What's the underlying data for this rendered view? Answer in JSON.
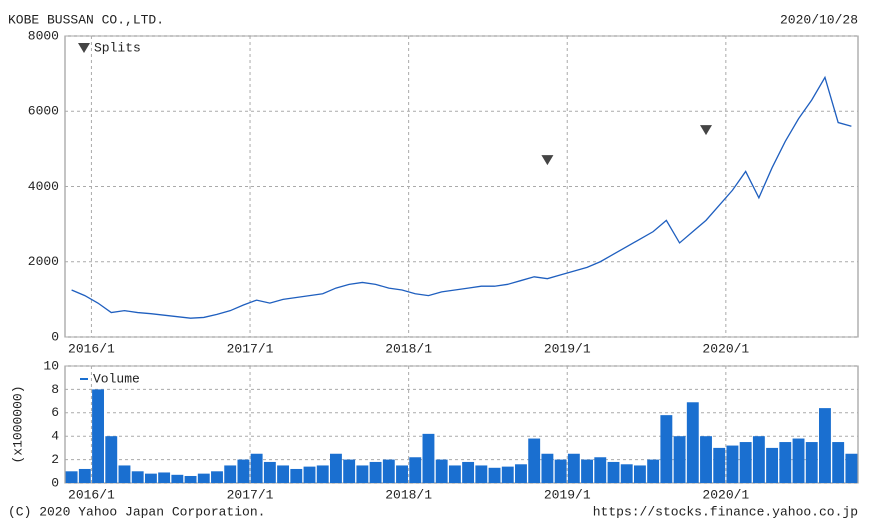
{
  "chart_data": [
    {
      "type": "line",
      "title": "KOBE BUSSAN CO.,LTD.",
      "subtitle": "2020/10/28",
      "x": [
        "2015/11",
        "2015/12",
        "2016/1",
        "2016/2",
        "2016/3",
        "2016/4",
        "2016/5",
        "2016/6",
        "2016/7",
        "2016/8",
        "2016/9",
        "2016/10",
        "2016/11",
        "2016/12",
        "2017/1",
        "2017/2",
        "2017/3",
        "2017/4",
        "2017/5",
        "2017/6",
        "2017/7",
        "2017/8",
        "2017/9",
        "2017/10",
        "2017/11",
        "2017/12",
        "2018/1",
        "2018/2",
        "2018/3",
        "2018/4",
        "2018/5",
        "2018/6",
        "2018/7",
        "2018/8",
        "2018/9",
        "2018/10",
        "2018/11",
        "2018/12",
        "2019/1",
        "2019/2",
        "2019/3",
        "2019/4",
        "2019/5",
        "2019/6",
        "2019/7",
        "2019/8",
        "2019/9",
        "2019/10",
        "2019/11",
        "2019/12",
        "2020/1",
        "2020/2",
        "2020/3",
        "2020/4",
        "2020/5",
        "2020/6",
        "2020/7",
        "2020/8",
        "2020/9",
        "2020/10"
      ],
      "series": [
        {
          "color": "#1f5fbf",
          "values": [
            1250,
            1100,
            900,
            650,
            700,
            650,
            620,
            580,
            540,
            500,
            520,
            600,
            700,
            850,
            980,
            900,
            1000,
            1050,
            1100,
            1150,
            1300,
            1400,
            1450,
            1400,
            1300,
            1250,
            1150,
            1100,
            1200,
            1250,
            1300,
            1350,
            1350,
            1400,
            1500,
            1600,
            1550,
            1650,
            1750,
            1850,
            2000,
            2200,
            2400,
            2600,
            2800,
            3100,
            2500,
            2800,
            3100,
            3500,
            3900,
            4400,
            3700,
            4500,
            5200,
            5800,
            6300,
            6900,
            5700,
            5600
          ]
        }
      ],
      "markers": {
        "name": "Splits",
        "color": "#444444",
        "x": [
          "2018/11",
          "2019/11"
        ],
        "values": [
          4700,
          5500
        ]
      },
      "ylim": [
        0,
        8000
      ],
      "yticks": [
        0,
        2000,
        4000,
        6000,
        8000
      ],
      "xticks": [
        "2016/1",
        "2017/1",
        "2018/1",
        "2019/1",
        "2020/1"
      ],
      "grid": true
    },
    {
      "type": "bar",
      "y_label": "(x1000000)",
      "x": [
        "2015/11",
        "2015/12",
        "2016/1",
        "2016/2",
        "2016/3",
        "2016/4",
        "2016/5",
        "2016/6",
        "2016/7",
        "2016/8",
        "2016/9",
        "2016/10",
        "2016/11",
        "2016/12",
        "2017/1",
        "2017/2",
        "2017/3",
        "2017/4",
        "2017/5",
        "2017/6",
        "2017/7",
        "2017/8",
        "2017/9",
        "2017/10",
        "2017/11",
        "2017/12",
        "2018/1",
        "2018/2",
        "2018/3",
        "2018/4",
        "2018/5",
        "2018/6",
        "2018/7",
        "2018/8",
        "2018/9",
        "2018/10",
        "2018/11",
        "2018/12",
        "2019/1",
        "2019/2",
        "2019/3",
        "2019/4",
        "2019/5",
        "2019/6",
        "2019/7",
        "2019/8",
        "2019/9",
        "2019/10",
        "2019/11",
        "2019/12",
        "2020/1",
        "2020/2",
        "2020/3",
        "2020/4",
        "2020/5",
        "2020/6",
        "2020/7",
        "2020/8",
        "2020/9",
        "2020/10"
      ],
      "series": [
        {
          "name": "Volume",
          "color": "#1a6fd0",
          "values": [
            1.0,
            1.2,
            8.0,
            4.0,
            1.5,
            1.0,
            0.8,
            0.9,
            0.7,
            0.6,
            0.8,
            1.0,
            1.5,
            2.0,
            2.5,
            1.8,
            1.5,
            1.2,
            1.4,
            1.5,
            2.5,
            2.0,
            1.5,
            1.8,
            2.0,
            1.5,
            2.2,
            4.2,
            2.0,
            1.5,
            1.8,
            1.5,
            1.3,
            1.4,
            1.6,
            3.8,
            2.5,
            2.0,
            2.5,
            2.0,
            2.2,
            1.8,
            1.6,
            1.5,
            2.0,
            5.8,
            4.0,
            6.9,
            4.0,
            3.0,
            3.2,
            3.5,
            4.0,
            3.0,
            3.5,
            3.8,
            3.5,
            6.4,
            3.5,
            2.5
          ]
        }
      ],
      "ylim": [
        0,
        10
      ],
      "yticks": [
        0,
        2,
        4,
        6,
        8,
        10
      ],
      "xticks": [
        "2016/1",
        "2017/1",
        "2018/1",
        "2019/1",
        "2020/1"
      ],
      "grid": true
    }
  ],
  "footer": {
    "copyright": "(C) 2020 Yahoo Japan Corporation.",
    "url": "https://stocks.finance.yahoo.co.jp"
  }
}
